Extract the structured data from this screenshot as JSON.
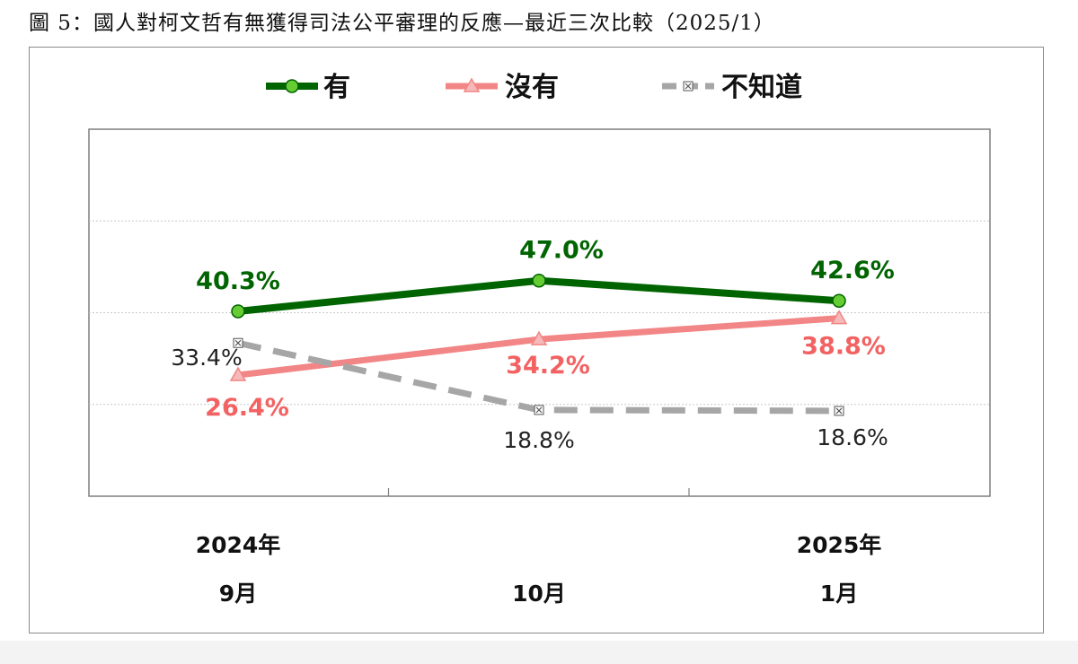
{
  "title": "圖 5：國人對柯文哲有無獲得司法公平審理的反應—最近三次比較（2025/1）",
  "colors": {
    "series_yes": "#006400",
    "series_yes_marker": "#66cc33",
    "series_no": "#f28585",
    "series_no_marker": "#f6b8b8",
    "series_dk": "#a6a6a6",
    "gridline": "#c8c8c8",
    "frame": "#7f7f7f"
  },
  "chart_data": {
    "type": "line",
    "title": "圖 5：國人對柯文哲有無獲得司法公平審理的反應—最近三次比較（2025/1）",
    "categories": [
      {
        "line1": "2024年",
        "line2": "9月"
      },
      {
        "line1": "",
        "line2": "10月"
      },
      {
        "line1": "2025年",
        "line2": "1月"
      }
    ],
    "series": [
      {
        "name": "有",
        "values": [
          40.3,
          47.0,
          42.6
        ],
        "labels": [
          "40.3%",
          "47.0%",
          "42.6%"
        ],
        "style": "solid",
        "marker": "circle"
      },
      {
        "name": "沒有",
        "values": [
          26.4,
          34.2,
          38.8
        ],
        "labels": [
          "26.4%",
          "34.2%",
          "38.8%"
        ],
        "style": "solid",
        "marker": "triangle"
      },
      {
        "name": "不知道",
        "values": [
          33.4,
          18.8,
          18.6
        ],
        "labels": [
          "33.4%",
          "18.8%",
          "18.6%"
        ],
        "style": "dashed",
        "marker": "x-square"
      }
    ],
    "legend_position": "top",
    "grid": "horizontal dotted",
    "y_axis_visible": false,
    "ylim": [
      0,
      80
    ]
  }
}
